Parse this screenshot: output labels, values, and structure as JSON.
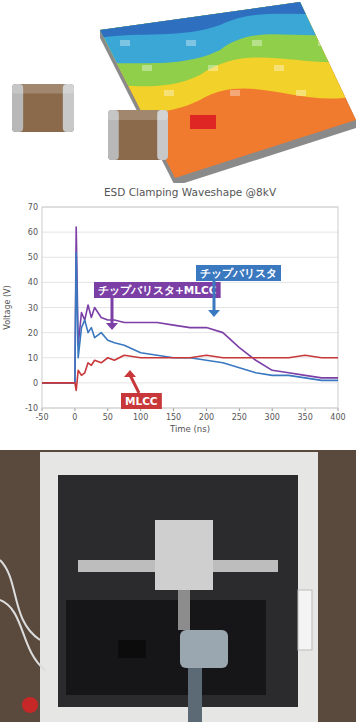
{
  "chart_data": {
    "type": "line",
    "title": "ESD Clamping Waveshape @8kV",
    "x_label": "Time (ns)",
    "y_label": "Voltage (V)",
    "x": [
      -50,
      -10,
      0,
      2,
      5,
      10,
      15,
      20,
      25,
      30,
      40,
      50,
      60,
      75,
      100,
      125,
      150,
      175,
      200,
      225,
      250,
      275,
      300,
      325,
      350,
      375,
      400
    ],
    "series": [
      {
        "name": "チップバリスタ+MLCC",
        "color": "#7b3fa6",
        "values": [
          0,
          0,
          0,
          62,
          15,
          28,
          25,
          31,
          26,
          30,
          26,
          25,
          25,
          24,
          24,
          24,
          23,
          22,
          22,
          20,
          14,
          9,
          5,
          4,
          3,
          2,
          2
        ]
      },
      {
        "name": "チップバリスタ",
        "color": "#3a78c0",
        "values": [
          0,
          0,
          0,
          52,
          10,
          22,
          25,
          20,
          22,
          18,
          20,
          17,
          16,
          15,
          12,
          11,
          10,
          10,
          9,
          8,
          6,
          4,
          3,
          3,
          2,
          1,
          1
        ]
      },
      {
        "name": "MLCC",
        "color": "#c8383a",
        "values": [
          0,
          0,
          0,
          -3,
          5,
          3,
          4,
          8,
          7,
          9,
          8,
          10,
          9,
          11,
          10,
          10,
          10,
          10,
          11,
          10,
          10,
          10,
          10,
          10,
          11,
          10,
          10
        ]
      }
    ],
    "xlim": [
      -50,
      400
    ],
    "xticks": [
      -50,
      0,
      50,
      100,
      150,
      200,
      250,
      300,
      350,
      400
    ],
    "ylim": [
      -10,
      70
    ],
    "yticks": [
      -10,
      0,
      10,
      20,
      30,
      40,
      50,
      60,
      70
    ],
    "grid": true
  }
}
